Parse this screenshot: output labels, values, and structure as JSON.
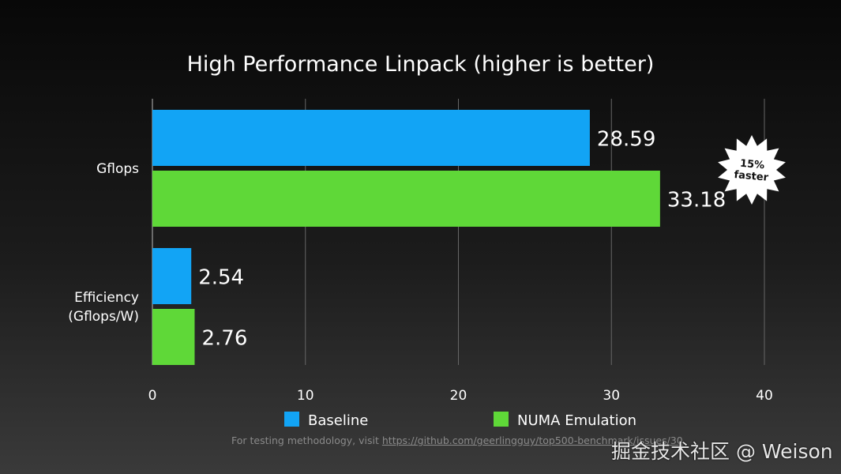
{
  "chart_data": {
    "type": "bar",
    "orientation": "horizontal",
    "title": "High Performance Linpack (higher is better)",
    "categories": [
      "Gflops",
      "Efficiency\n(Gflops/W)"
    ],
    "series": [
      {
        "name": "Baseline",
        "color": "#12a4f5",
        "values": [
          28.59,
          2.54
        ]
      },
      {
        "name": "NUMA Emulation",
        "color": "#5fd838",
        "values": [
          33.18,
          2.76
        ]
      }
    ],
    "xlim": [
      0,
      40
    ],
    "xticks": [
      0,
      10,
      20,
      30,
      40
    ],
    "grid": true,
    "legend": "bottom",
    "annotation": {
      "text": [
        "15%",
        "faster"
      ]
    }
  },
  "footer": {
    "note": "For testing methodology, visit ",
    "link": "https://github.com/geerlingguy/top500-benchmark/issues/30"
  },
  "watermark": "掘金技术社区 @ Weison"
}
